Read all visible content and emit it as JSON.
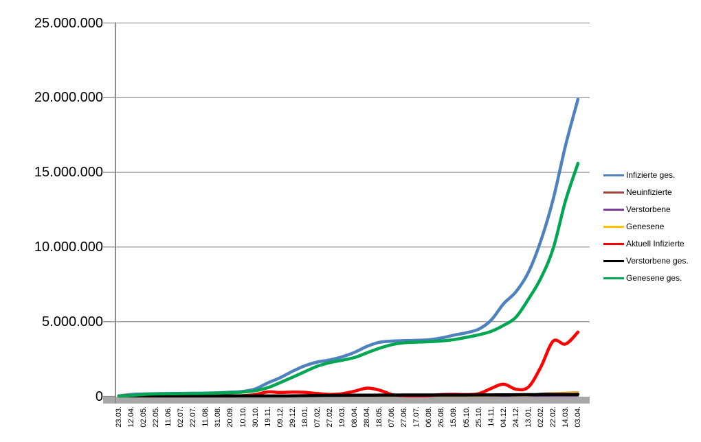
{
  "chart_data": {
    "type": "line",
    "title": "",
    "xlabel": "",
    "ylabel": "",
    "ylim": [
      0,
      25000000
    ],
    "grid": true,
    "legend_position": "right",
    "y_tick_values": [
      0,
      5000000,
      10000000,
      15000000,
      20000000,
      25000000
    ],
    "y_tick_labels": [
      "0",
      "5.000.000",
      "10.000.000",
      "15.000.000",
      "20.000.000",
      "25.000.000"
    ],
    "x_tick_labels": [
      "23.03.",
      "12.04.",
      "02.05.",
      "22.05.",
      "11.06.",
      "02.07.",
      "22.07.",
      "11.08.",
      "31.08.",
      "20.09.",
      "10.10.",
      "30.10.",
      "19.11.",
      "09.12.",
      "29.12.",
      "18.01.",
      "07.02.",
      "27.02.",
      "19.03.",
      "08.04.",
      "28.04.",
      "18.05.",
      "07.06.",
      "27.06.",
      "17.07.",
      "06.08.",
      "26.08.",
      "15.09.",
      "05.10.",
      "25.10.",
      "14.11.",
      "04.12.",
      "24.12.",
      "13.01.",
      "02.02.",
      "22.02.",
      "14.03.",
      "03.04."
    ],
    "series": [
      {
        "name": "Infizierte ges.",
        "color": "#4F81BD",
        "line_width": 4.5,
        "values": [
          30000,
          130000,
          160000,
          180000,
          190000,
          200000,
          210000,
          220000,
          240000,
          280000,
          330000,
          500000,
          900000,
          1250000,
          1680000,
          2050000,
          2300000,
          2440000,
          2650000,
          2950000,
          3350000,
          3620000,
          3700000,
          3730000,
          3750000,
          3790000,
          3910000,
          4100000,
          4260000,
          4500000,
          5100000,
          6200000,
          7000000,
          8300000,
          10400000,
          13200000,
          16800000,
          19900000
        ]
      },
      {
        "name": "Neuinfizierte",
        "color": "#A5433F",
        "line_width": 2.5,
        "values": [
          4000,
          4000,
          1500,
          800,
          400,
          400,
          500,
          1000,
          1200,
          2000,
          5000,
          15000,
          22000,
          25000,
          22000,
          14000,
          8000,
          8000,
          16000,
          25000,
          20000,
          8000,
          3000,
          1000,
          1500,
          3000,
          8000,
          10000,
          7000,
          15000,
          45000,
          65000,
          35000,
          80000,
          190000,
          220000,
          250000,
          270000
        ]
      },
      {
        "name": "Verstorbene",
        "color": "#7A3B96",
        "line_width": 2.5,
        "values": [
          200,
          250,
          150,
          60,
          30,
          20,
          20,
          20,
          30,
          40,
          80,
          150,
          300,
          500,
          700,
          900,
          700,
          400,
          300,
          300,
          300,
          200,
          100,
          100,
          50,
          50,
          60,
          80,
          80,
          100,
          200,
          400,
          400,
          400,
          250,
          300,
          300,
          300
        ]
      },
      {
        "name": "Genesene",
        "color": "#FFC000",
        "line_width": 2.5,
        "values": [
          2000,
          4000,
          3000,
          1200,
          600,
          400,
          500,
          800,
          1000,
          1800,
          3000,
          10000,
          18000,
          22000,
          24000,
          18000,
          11000,
          8000,
          10000,
          19000,
          22000,
          14000,
          6000,
          2000,
          1200,
          2000,
          5000,
          10000,
          8000,
          10000,
          30000,
          55000,
          50000,
          50000,
          130000,
          200000,
          230000,
          250000
        ]
      },
      {
        "name": "Aktuell Infizierte",
        "color": "#FF0000",
        "line_width": 4.5,
        "values": [
          20000,
          55000,
          35000,
          15000,
          8000,
          7000,
          8000,
          12000,
          18000,
          22000,
          45000,
          120000,
          300000,
          260000,
          290000,
          270000,
          190000,
          130000,
          180000,
          350000,
          550000,
          420000,
          120000,
          50000,
          40000,
          50000,
          120000,
          140000,
          120000,
          180000,
          530000,
          820000,
          480000,
          620000,
          1950000,
          3700000,
          3500000,
          4300000
        ]
      },
      {
        "name": "Verstorbene ges.",
        "color": "#000000",
        "line_width": 4.5,
        "values": [
          200,
          3000,
          6000,
          8000,
          8800,
          9000,
          9100,
          9200,
          9300,
          9400,
          9700,
          10200,
          14000,
          20000,
          33000,
          48000,
          62000,
          70000,
          75000,
          78000,
          82000,
          86000,
          89000,
          90000,
          91000,
          91500,
          92000,
          93000,
          94000,
          95000,
          98000,
          102000,
          110000,
          115000,
          118000,
          122000,
          126000,
          131000
        ]
      },
      {
        "name": "Genesene ges.",
        "color": "#00A651",
        "line_width": 4.5,
        "values": [
          10000,
          60000,
          130000,
          160000,
          170000,
          180000,
          190000,
          200000,
          220000,
          250000,
          290000,
          380000,
          580000,
          920000,
          1280000,
          1660000,
          2020000,
          2260000,
          2420000,
          2600000,
          2920000,
          3220000,
          3460000,
          3590000,
          3630000,
          3660000,
          3710000,
          3800000,
          3950000,
          4120000,
          4350000,
          4750000,
          5300000,
          6500000,
          7900000,
          9900000,
          13100000,
          15600000
        ]
      }
    ],
    "colors": {
      "background": "#FFFFFF",
      "gridline": "#9B9B9B",
      "axis_line": "#8C8C8C",
      "axis_bar": "#A8A8A8",
      "text": "#000000"
    }
  }
}
